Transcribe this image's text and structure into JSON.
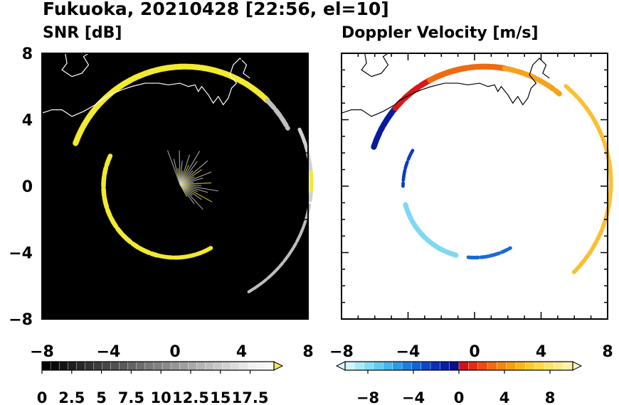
{
  "figure": {
    "title": "Fukuoka, 20210428 [22:56, el=10]"
  },
  "chart_data": [
    {
      "type": "heatmap",
      "title": "SNR [dB]",
      "xlim": [
        -8,
        8
      ],
      "ylim": [
        -8,
        8
      ],
      "x_ticks": [
        "−8",
        "−4",
        "0",
        "4",
        "8"
      ],
      "y_ticks": [
        "8",
        "4",
        "0",
        "−4",
        "−8"
      ],
      "background": "#000000",
      "colorbar": {
        "range": [
          0,
          19.5
        ],
        "ticks": [
          {
            "value": 0,
            "label": "0"
          },
          {
            "value": 2.5,
            "label": "2.5"
          },
          {
            "value": 5,
            "label": "5"
          },
          {
            "value": 7.5,
            "label": "7.5"
          },
          {
            "value": 10,
            "label": "10"
          },
          {
            "value": 12.5,
            "label": "12.5"
          },
          {
            "value": 15,
            "label": "15"
          },
          {
            "value": 17.5,
            "label": "17.5"
          }
        ],
        "colors": [
          "#000000",
          "#0a0a0a",
          "#141414",
          "#1e1e1e",
          "#282828",
          "#323232",
          "#3c3c3c",
          "#464646",
          "#505050",
          "#5a5a5a",
          "#646464",
          "#6e6e6e",
          "#787878",
          "#828282",
          "#8c8c8c",
          "#969696",
          "#a0a0a0",
          "#aaaaaa",
          "#b4b4b4",
          "#bebebe",
          "#c8c8c8",
          "#d2d2d2",
          "#dcdcdc",
          "#e6e6e6",
          "#f0f0f0",
          "#f5f5f5",
          "#fafafa"
        ],
        "extend_color": "#f5e84a"
      },
      "echo_regions": [
        {
          "kind": "arc",
          "x0": -6.2,
          "y0": 3.4,
          "cx": 0.6,
          "cy": 0.2,
          "r": 7.0,
          "a1": 160,
          "a2": 45,
          "width": 0.35,
          "color": "#f2ea2e"
        },
        {
          "kind": "arc",
          "cx": 0.6,
          "cy": 0.2,
          "r": 7.0,
          "a1": 45,
          "a2": 28,
          "width": 0.28,
          "color": "#bfbfbf"
        },
        {
          "kind": "arc",
          "cx": 0.6,
          "cy": 0.2,
          "r": 7.6,
          "a1": 25,
          "a2": -8,
          "width": 0.22,
          "color": "#d0d0d0"
        },
        {
          "kind": "arc",
          "cx": 0.6,
          "cy": 0.2,
          "r": 7.6,
          "a1": 5,
          "a2": -4,
          "width": 0.2,
          "color": "#f2ea2e"
        },
        {
          "kind": "arc",
          "cx": 0.6,
          "cy": 0.2,
          "r": 7.6,
          "a1": -10,
          "a2": -60,
          "width": 0.18,
          "color": "#bdbdbd"
        },
        {
          "kind": "arc",
          "cx": 0.0,
          "cy": 0.0,
          "r": 4.3,
          "a1": 155,
          "a2": 255,
          "width": 0.28,
          "color": "#f2ea2e"
        },
        {
          "kind": "arc",
          "cx": 0.0,
          "cy": 0.0,
          "r": 4.3,
          "a1": 255,
          "a2": 300,
          "width": 0.25,
          "color": "#f2ea2e"
        },
        {
          "kind": "wedge",
          "cx": 0.3,
          "cy": 0.1,
          "r": 2.4,
          "a1": -60,
          "a2": 110,
          "color": "#c8c8c8"
        }
      ]
    },
    {
      "type": "heatmap",
      "title": "Doppler Velocity [m/s]",
      "xlim": [
        -8,
        8
      ],
      "ylim": [
        -8,
        8
      ],
      "x_ticks": [
        "−8",
        "−4",
        "0",
        "4",
        "8"
      ],
      "background": "#ffffff",
      "colorbar": {
        "range": [
          -10,
          10
        ],
        "ticks": [
          {
            "value": -8,
            "label": "−8"
          },
          {
            "value": -4,
            "label": "−4"
          },
          {
            "value": 0,
            "label": "0"
          },
          {
            "value": 4,
            "label": "4"
          },
          {
            "value": 8,
            "label": "8"
          }
        ],
        "colors": [
          "#cdf5fb",
          "#a8eaf7",
          "#86dcf2",
          "#63cbee",
          "#45b6ea",
          "#2b9ce4",
          "#1c7fdd",
          "#1463d4",
          "#0e47c8",
          "#0a30b8",
          "#081ea3",
          "#0a1088",
          "#d4101a",
          "#e42c14",
          "#ee4a12",
          "#f26a10",
          "#f5860e",
          "#f7a00e",
          "#f9b81a",
          "#fbca30",
          "#fcd84c",
          "#fde26a",
          "#fdea8a",
          "#fef1ab"
        ],
        "extend_min_color": "#dff8fc",
        "extend_max_color": "#fff6cc"
      },
      "echo_regions": [
        {
          "kind": "arc",
          "cx": 0.6,
          "cy": 0.2,
          "r": 7.0,
          "a1": 162,
          "a2": 140,
          "width": 0.35,
          "color": "#0a1a9e"
        },
        {
          "kind": "arc",
          "cx": 0.6,
          "cy": 0.2,
          "r": 7.0,
          "a1": 140,
          "a2": 118,
          "width": 0.35,
          "color": "#d81818"
        },
        {
          "kind": "arc",
          "cx": 0.6,
          "cy": 0.2,
          "r": 7.0,
          "a1": 118,
          "a2": 80,
          "width": 0.35,
          "color": "#ef6a10"
        },
        {
          "kind": "arc",
          "cx": 0.6,
          "cy": 0.2,
          "r": 7.0,
          "a1": 80,
          "a2": 50,
          "width": 0.32,
          "color": "#f7a21a"
        },
        {
          "kind": "arc",
          "cx": 0.6,
          "cy": 0.2,
          "r": 7.6,
          "a1": 50,
          "a2": -45,
          "width": 0.25,
          "color": "#f9c033"
        },
        {
          "kind": "arc",
          "cx": 0.0,
          "cy": 0.0,
          "r": 4.3,
          "a1": 150,
          "a2": 180,
          "width": 0.2,
          "color": "#0e3cc0"
        },
        {
          "kind": "arc",
          "cx": 0.0,
          "cy": 0.0,
          "r": 4.3,
          "a1": 195,
          "a2": 255,
          "width": 0.3,
          "color": "#7fd8f2"
        },
        {
          "kind": "arc",
          "cx": 0.0,
          "cy": 0.0,
          "r": 4.3,
          "a1": 265,
          "a2": 300,
          "width": 0.22,
          "color": "#1a6ad8"
        }
      ]
    }
  ]
}
